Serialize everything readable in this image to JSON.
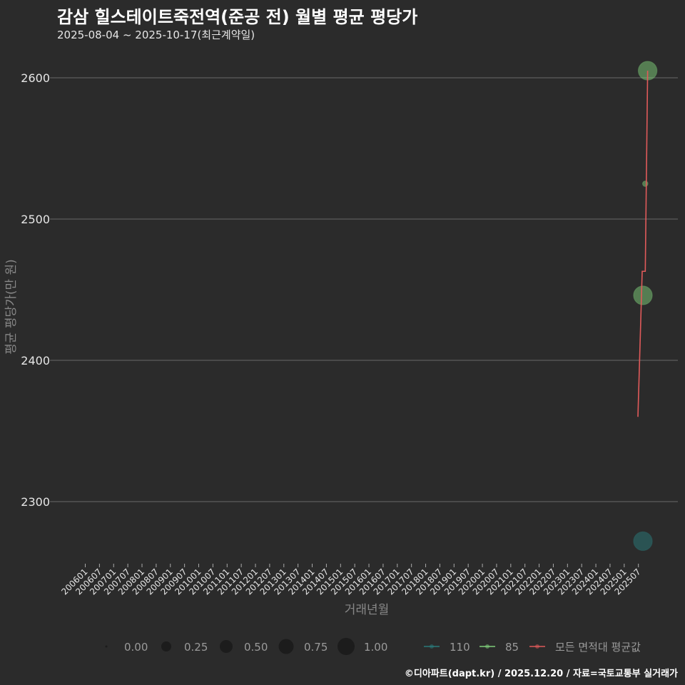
{
  "header": {
    "title": "감삼 힐스테이트죽전역(준공 전) 월별 평균 평당가",
    "subtitle": "2025-08-04 ~ 2025-10-17(최근계약일)"
  },
  "footer": {
    "credit": "©디아파트(dapt.kr) / 2025.12.20 / 자료=국토교통부 실거래가"
  },
  "colors": {
    "background": "#2b2b2b",
    "grid": "#6a6a6a",
    "series_110": "#2a7b7b",
    "series_85": "#7fd07a",
    "series_avg": "#e05a5a"
  },
  "chart_data": {
    "type": "scatter",
    "title": "감삼 힐스테이트죽전역(준공 전) 월별 평균 평당가",
    "subtitle": "2025-08-04 ~ 2025-10-17(최근계약일)",
    "xlabel": "거래년월",
    "ylabel": "평균 평당가(만 원)",
    "ylim": [
      2255,
      2615
    ],
    "yticks": [
      2300,
      2400,
      2500,
      2600
    ],
    "xticks": [
      "200601",
      "200607",
      "200701",
      "200707",
      "200801",
      "200807",
      "200901",
      "200907",
      "201001",
      "201007",
      "201101",
      "201107",
      "201201",
      "201207",
      "201301",
      "201307",
      "201401",
      "201407",
      "201501",
      "201507",
      "201601",
      "201607",
      "201701",
      "201707",
      "201801",
      "201807",
      "201901",
      "201907",
      "202001",
      "202007",
      "202101",
      "202107",
      "202201",
      "202207",
      "202301",
      "202307",
      "202401",
      "202407",
      "202501",
      "202507"
    ],
    "grid": true,
    "legend_position": "bottom",
    "size_legend": {
      "labels": [
        "0.00",
        "0.25",
        "0.50",
        "0.75",
        "1.00"
      ]
    },
    "series": [
      {
        "name": "110",
        "type": "scatter",
        "points": [
          {
            "x": "202508",
            "y": 2272,
            "size": 0.6
          }
        ]
      },
      {
        "name": "85",
        "type": "scatter",
        "points": [
          {
            "x": "202508",
            "y": 2446,
            "size": 0.6
          },
          {
            "x": "202509",
            "y": 2525,
            "size": 0.05
          },
          {
            "x": "202510",
            "y": 2605,
            "size": 0.6
          }
        ]
      },
      {
        "name": "모든 면적대 평균값",
        "type": "line",
        "points": [
          {
            "x": "202508",
            "y": 2360
          },
          {
            "x": "202508",
            "y": 2463
          },
          {
            "x": "202509",
            "y": 2463
          },
          {
            "x": "202510",
            "y": 2605
          }
        ]
      }
    ]
  }
}
